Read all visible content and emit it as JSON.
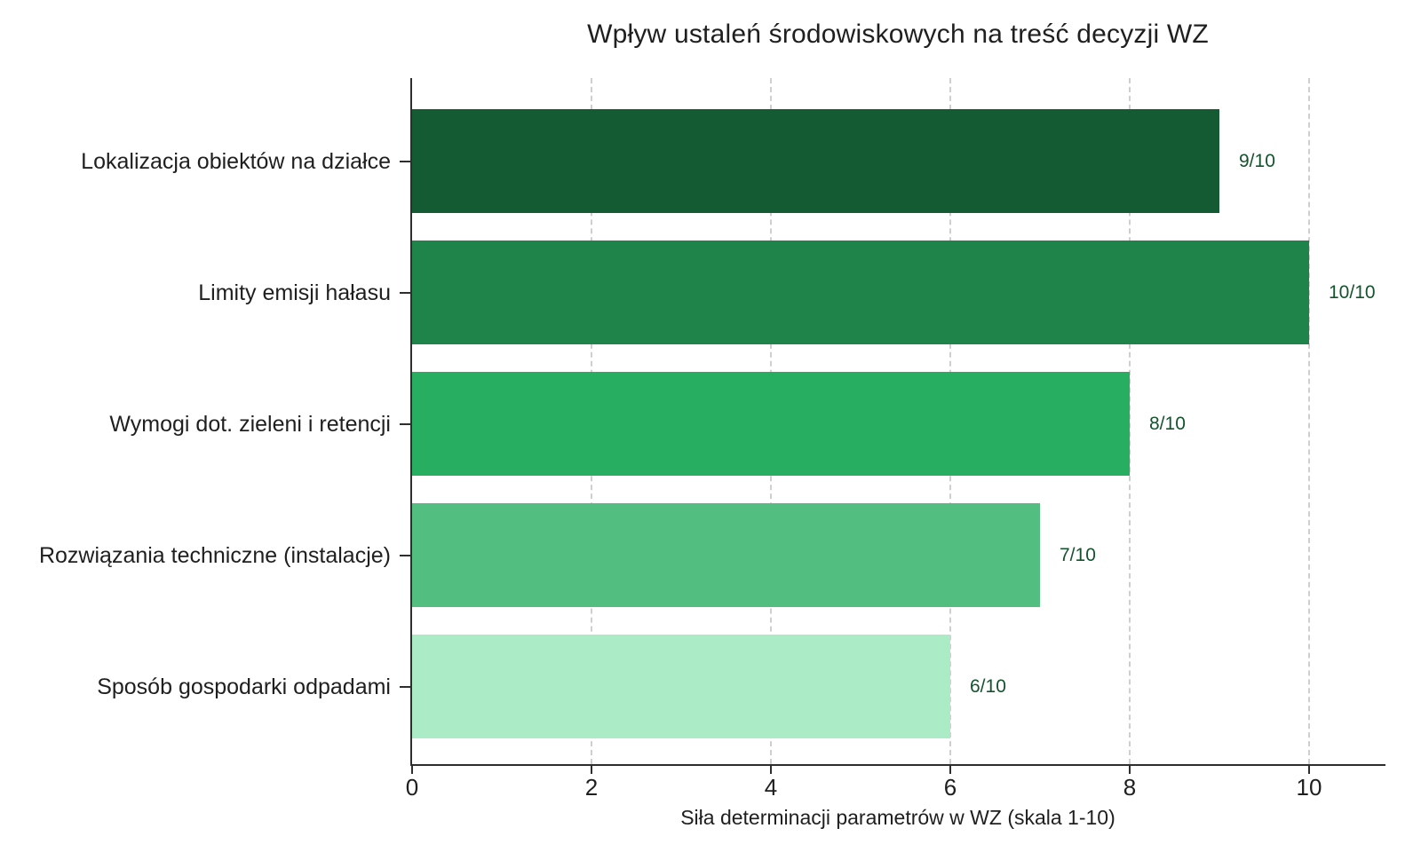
{
  "chart_data": {
    "type": "bar",
    "orientation": "horizontal",
    "title": "Wpływ ustaleń środowiskowych na treść decyzji WZ",
    "xlabel": "Siła determinacji parametrów w WZ (skala 1-10)",
    "ylabel": "",
    "categories": [
      "Lokalizacja obiektów na działce",
      "Limity emisji hałasu",
      "Wymogi dot. zieleni i retencji",
      "Rozwiązania techniczne (instalacje)",
      "Sposób gospodarki odpadami"
    ],
    "values": [
      9,
      10,
      8,
      7,
      6
    ],
    "value_labels": [
      "9/10",
      "10/10",
      "8/10",
      "7/10",
      "6/10"
    ],
    "bar_colors": [
      "#145A32",
      "#1E8449",
      "#27AE60",
      "#52BE80",
      "#ABEBC6"
    ],
    "value_label_color": "#14532D",
    "axis_color": "#2e2e2e",
    "grid_color": "#cfcfcf",
    "text_color": "#1f1f1f",
    "background_color": "#ffffff",
    "xlim": [
      0,
      10.85
    ],
    "xticks": [
      0,
      2,
      4,
      6,
      8,
      10
    ],
    "grid": "vertical-dashed",
    "legend": "none"
  }
}
